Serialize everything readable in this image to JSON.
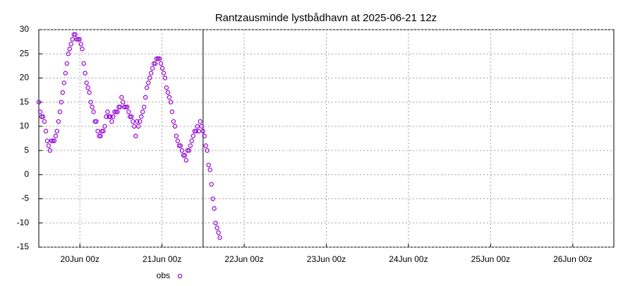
{
  "chart_data": {
    "type": "scatter",
    "title": "Rantzausminde lystbådhavn at 2025-06-21 12z",
    "xlim": [
      -12,
      156
    ],
    "xticks": [
      {
        "value": 0,
        "label": "20Jun 00z"
      },
      {
        "value": 24,
        "label": "21Jun 00z"
      },
      {
        "value": 48,
        "label": "22Jun 00z"
      },
      {
        "value": 72,
        "label": "23Jun 00z"
      },
      {
        "value": 96,
        "label": "24Jun 00z"
      },
      {
        "value": 120,
        "label": "25Jun 00z"
      },
      {
        "value": 144,
        "label": "26Jun 00z"
      }
    ],
    "ylim": [
      -15,
      30
    ],
    "yticks": [
      -15,
      -10,
      -5,
      0,
      5,
      10,
      15,
      20,
      25,
      30
    ],
    "grid": true,
    "now_x": 36,
    "legend": "bottom",
    "series": [
      {
        "name": "obs",
        "color": "#9400d3",
        "x": [
          -12,
          -11.59,
          -11.18,
          -10.77,
          -10.36,
          -9.95,
          -9.54,
          -9.13,
          -8.72,
          -8.31,
          -7.9,
          -7.49,
          -7.08,
          -6.67,
          -6.26,
          -5.85,
          -5.44,
          -5.03,
          -4.62,
          -4.21,
          -3.8,
          -3.39,
          -2.98,
          -2.57,
          -2.16,
          -1.75,
          -1.34,
          -0.93,
          -0.52,
          -0.11,
          0.3,
          0.71,
          1.12,
          1.53,
          1.94,
          2.35,
          2.76,
          3.17,
          3.58,
          3.99,
          4.4,
          4.81,
          5.22,
          5.63,
          6.04,
          6.45,
          6.86,
          7.27,
          7.68,
          8.09,
          8.5,
          8.91,
          9.32,
          9.73,
          10.14,
          10.55,
          10.96,
          11.37,
          11.78,
          12.19,
          12.6,
          13.01,
          13.42,
          13.83,
          14.24,
          14.65,
          15.06,
          15.47,
          15.88,
          16.29,
          16.7,
          17.11,
          17.52,
          17.93,
          18.34,
          18.75,
          19.16,
          19.57,
          19.98,
          20.39,
          20.8,
          21.21,
          21.62,
          22.03,
          22.44,
          22.85,
          23.26,
          23.67,
          24.08,
          24.49,
          24.9,
          25.31,
          25.72,
          26.13,
          26.54,
          26.95,
          27.36,
          27.77,
          28.18,
          28.59,
          29,
          29.41,
          29.82,
          30.23,
          30.64,
          31.05,
          31.46,
          31.87,
          32.28,
          32.69,
          33.1,
          33.51,
          33.92,
          34.33,
          34.74,
          35.15,
          35.56,
          35.97,
          36.38,
          36.79,
          37.2,
          37.61,
          38.02,
          38.43,
          38.84,
          39.25,
          39.66,
          40.07,
          40.48,
          40.89
        ],
        "values": [
          15,
          13,
          12,
          12,
          11,
          9,
          7,
          6,
          5,
          7,
          7,
          7,
          8,
          9,
          11,
          13,
          15,
          17,
          19,
          21,
          23,
          25,
          26,
          27,
          28,
          29,
          29,
          28,
          28,
          28,
          27,
          26,
          23,
          21,
          19,
          18,
          17,
          15,
          14,
          13,
          11,
          11,
          9,
          8,
          8,
          9,
          9,
          10,
          12,
          13,
          12,
          12,
          11,
          12,
          13,
          13,
          13,
          14,
          14,
          16,
          15,
          14,
          14,
          14,
          13,
          12,
          12,
          11,
          10,
          8,
          11,
          10,
          11,
          12,
          13,
          14,
          16,
          18,
          19,
          20,
          21,
          22,
          23,
          23,
          24,
          24,
          24,
          23,
          22,
          21,
          20,
          18,
          17,
          16,
          15,
          13,
          11,
          10,
          8,
          7,
          6,
          6,
          5,
          4,
          4,
          3,
          5,
          5,
          6,
          7,
          8,
          9,
          9,
          10,
          9,
          11,
          10,
          9,
          8,
          6,
          5,
          2,
          1,
          -2,
          -5,
          -7,
          -10,
          -11,
          -12,
          -13
        ]
      }
    ]
  }
}
